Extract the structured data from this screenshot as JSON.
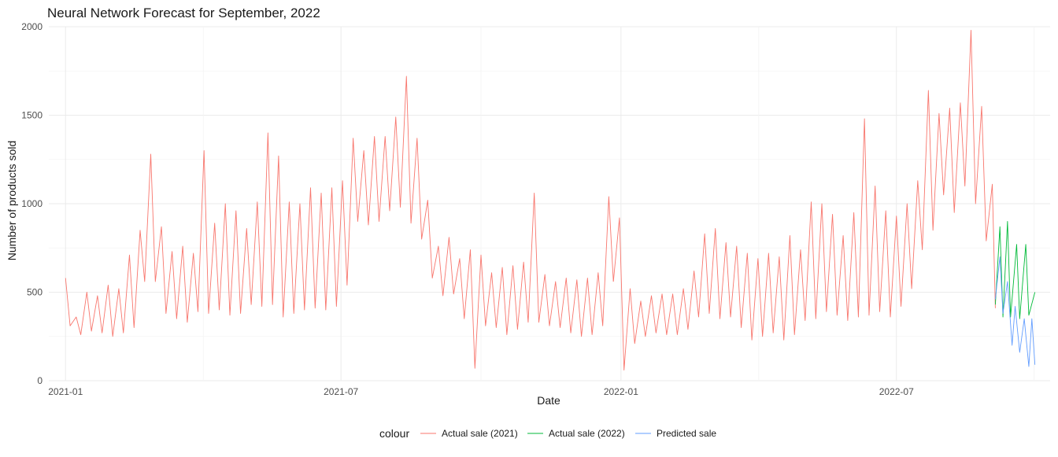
{
  "chart_data": {
    "type": "line",
    "title": "Neural Network Forecast for September, 2022",
    "xlabel": "Date",
    "ylabel": "Number of products sold",
    "x_axis_type": "date",
    "xlim": [
      "2020-12-21",
      "2022-10-10"
    ],
    "ylim": [
      0,
      2000
    ],
    "x_ticks": [
      {
        "date": "2021-01-01",
        "label": "2021-01"
      },
      {
        "date": "2021-07-01",
        "label": "2021-07"
      },
      {
        "date": "2022-01-01",
        "label": "2022-01"
      },
      {
        "date": "2022-07-01",
        "label": "2022-07"
      }
    ],
    "y_ticks": [
      0,
      500,
      1000,
      1500,
      2000
    ],
    "grid": true,
    "legend": {
      "title": "colour",
      "position": "bottom"
    },
    "series": [
      {
        "name": "Actual sale (2021)",
        "color": "#F8766D",
        "points": [
          [
            "2021-01-01",
            580
          ],
          [
            "2021-01-04",
            310
          ],
          [
            "2021-01-08",
            360
          ],
          [
            "2021-01-11",
            260
          ],
          [
            "2021-01-15",
            500
          ],
          [
            "2021-01-18",
            280
          ],
          [
            "2021-01-22",
            480
          ],
          [
            "2021-01-25",
            270
          ],
          [
            "2021-01-29",
            540
          ],
          [
            "2021-02-01",
            250
          ],
          [
            "2021-02-05",
            520
          ],
          [
            "2021-02-08",
            270
          ],
          [
            "2021-02-12",
            710
          ],
          [
            "2021-02-15",
            300
          ],
          [
            "2021-02-19",
            850
          ],
          [
            "2021-02-22",
            560
          ],
          [
            "2021-02-26",
            1280
          ],
          [
            "2021-03-01",
            560
          ],
          [
            "2021-03-05",
            870
          ],
          [
            "2021-03-08",
            380
          ],
          [
            "2021-03-12",
            730
          ],
          [
            "2021-03-15",
            350
          ],
          [
            "2021-03-19",
            760
          ],
          [
            "2021-03-22",
            330
          ],
          [
            "2021-03-26",
            720
          ],
          [
            "2021-03-29",
            390
          ],
          [
            "2021-04-02",
            1300
          ],
          [
            "2021-04-05",
            380
          ],
          [
            "2021-04-09",
            890
          ],
          [
            "2021-04-12",
            400
          ],
          [
            "2021-04-16",
            1000
          ],
          [
            "2021-04-19",
            370
          ],
          [
            "2021-04-23",
            960
          ],
          [
            "2021-04-26",
            380
          ],
          [
            "2021-04-30",
            860
          ],
          [
            "2021-05-03",
            430
          ],
          [
            "2021-05-07",
            1010
          ],
          [
            "2021-05-10",
            420
          ],
          [
            "2021-05-14",
            1400
          ],
          [
            "2021-05-17",
            430
          ],
          [
            "2021-05-21",
            1270
          ],
          [
            "2021-05-24",
            360
          ],
          [
            "2021-05-28",
            1010
          ],
          [
            "2021-05-31",
            380
          ],
          [
            "2021-06-04",
            1000
          ],
          [
            "2021-06-07",
            400
          ],
          [
            "2021-06-11",
            1090
          ],
          [
            "2021-06-14",
            410
          ],
          [
            "2021-06-18",
            1060
          ],
          [
            "2021-06-21",
            400
          ],
          [
            "2021-06-25",
            1090
          ],
          [
            "2021-06-28",
            420
          ],
          [
            "2021-07-02",
            1130
          ],
          [
            "2021-07-05",
            540
          ],
          [
            "2021-07-09",
            1370
          ],
          [
            "2021-07-12",
            900
          ],
          [
            "2021-07-16",
            1300
          ],
          [
            "2021-07-19",
            880
          ],
          [
            "2021-07-23",
            1380
          ],
          [
            "2021-07-26",
            900
          ],
          [
            "2021-07-30",
            1380
          ],
          [
            "2021-08-02",
            960
          ],
          [
            "2021-08-06",
            1490
          ],
          [
            "2021-08-09",
            980
          ],
          [
            "2021-08-13",
            1720
          ],
          [
            "2021-08-16",
            890
          ],
          [
            "2021-08-20",
            1370
          ],
          [
            "2021-08-23",
            800
          ],
          [
            "2021-08-27",
            1020
          ],
          [
            "2021-08-30",
            580
          ],
          [
            "2021-09-03",
            760
          ],
          [
            "2021-09-06",
            480
          ],
          [
            "2021-09-10",
            810
          ],
          [
            "2021-09-13",
            490
          ],
          [
            "2021-09-17",
            690
          ],
          [
            "2021-09-20",
            350
          ],
          [
            "2021-09-24",
            740
          ],
          [
            "2021-09-27",
            70
          ],
          [
            "2021-10-01",
            710
          ],
          [
            "2021-10-04",
            310
          ],
          [
            "2021-10-08",
            610
          ],
          [
            "2021-10-11",
            300
          ],
          [
            "2021-10-15",
            640
          ],
          [
            "2021-10-18",
            260
          ],
          [
            "2021-10-22",
            650
          ],
          [
            "2021-10-25",
            290
          ],
          [
            "2021-10-29",
            670
          ],
          [
            "2021-11-01",
            330
          ],
          [
            "2021-11-05",
            1060
          ],
          [
            "2021-11-08",
            330
          ],
          [
            "2021-11-12",
            600
          ],
          [
            "2021-11-15",
            310
          ],
          [
            "2021-11-19",
            560
          ],
          [
            "2021-11-22",
            300
          ],
          [
            "2021-11-26",
            580
          ],
          [
            "2021-11-29",
            270
          ],
          [
            "2021-12-03",
            570
          ],
          [
            "2021-12-06",
            250
          ],
          [
            "2021-12-10",
            580
          ],
          [
            "2021-12-13",
            260
          ],
          [
            "2021-12-17",
            610
          ],
          [
            "2021-12-20",
            310
          ],
          [
            "2021-12-24",
            1040
          ],
          [
            "2021-12-27",
            560
          ]
        ]
      },
      {
        "name": "",
        "color": "#F8766D",
        "points": [
          [
            "2021-12-27",
            560
          ],
          [
            "2021-12-31",
            920
          ],
          [
            "2022-01-03",
            60
          ],
          [
            "2022-01-07",
            520
          ],
          [
            "2022-01-10",
            210
          ],
          [
            "2022-01-14",
            450
          ],
          [
            "2022-01-17",
            250
          ],
          [
            "2022-01-21",
            480
          ],
          [
            "2022-01-24",
            270
          ],
          [
            "2022-01-28",
            490
          ],
          [
            "2022-01-31",
            260
          ],
          [
            "2022-02-04",
            490
          ],
          [
            "2022-02-07",
            260
          ],
          [
            "2022-02-11",
            520
          ],
          [
            "2022-02-14",
            290
          ],
          [
            "2022-02-18",
            620
          ],
          [
            "2022-02-21",
            360
          ],
          [
            "2022-02-25",
            830
          ],
          [
            "2022-02-28",
            380
          ],
          [
            "2022-03-04",
            860
          ],
          [
            "2022-03-07",
            350
          ],
          [
            "2022-03-11",
            780
          ],
          [
            "2022-03-14",
            360
          ],
          [
            "2022-03-18",
            760
          ],
          [
            "2022-03-21",
            300
          ],
          [
            "2022-03-25",
            720
          ],
          [
            "2022-03-28",
            230
          ],
          [
            "2022-04-01",
            690
          ],
          [
            "2022-04-04",
            250
          ],
          [
            "2022-04-08",
            720
          ],
          [
            "2022-04-11",
            270
          ],
          [
            "2022-04-15",
            700
          ],
          [
            "2022-04-18",
            230
          ],
          [
            "2022-04-22",
            820
          ],
          [
            "2022-04-25",
            260
          ],
          [
            "2022-04-29",
            740
          ],
          [
            "2022-05-02",
            340
          ],
          [
            "2022-05-06",
            1010
          ],
          [
            "2022-05-09",
            350
          ],
          [
            "2022-05-13",
            1000
          ],
          [
            "2022-05-16",
            390
          ],
          [
            "2022-05-20",
            940
          ],
          [
            "2022-05-23",
            370
          ],
          [
            "2022-05-27",
            820
          ],
          [
            "2022-05-30",
            340
          ],
          [
            "2022-06-03",
            950
          ],
          [
            "2022-06-06",
            360
          ],
          [
            "2022-06-10",
            1480
          ],
          [
            "2022-06-13",
            370
          ],
          [
            "2022-06-17",
            1100
          ],
          [
            "2022-06-20",
            390
          ],
          [
            "2022-06-24",
            960
          ],
          [
            "2022-06-27",
            360
          ],
          [
            "2022-07-01",
            930
          ],
          [
            "2022-07-04",
            420
          ],
          [
            "2022-07-08",
            1000
          ],
          [
            "2022-07-11",
            520
          ],
          [
            "2022-07-15",
            1130
          ],
          [
            "2022-07-18",
            740
          ],
          [
            "2022-07-22",
            1640
          ],
          [
            "2022-07-25",
            850
          ],
          [
            "2022-07-29",
            1510
          ],
          [
            "2022-08-01",
            1050
          ],
          [
            "2022-08-05",
            1540
          ],
          [
            "2022-08-08",
            950
          ],
          [
            "2022-08-12",
            1570
          ],
          [
            "2022-08-15",
            1100
          ],
          [
            "2022-08-19",
            1980
          ],
          [
            "2022-08-22",
            1000
          ],
          [
            "2022-08-26",
            1550
          ],
          [
            "2022-08-29",
            790
          ],
          [
            "2022-09-02",
            1110
          ],
          [
            "2022-09-04",
            410
          ]
        ]
      },
      {
        "name": "Actual sale (2022)",
        "color": "#00BA38",
        "points": [
          [
            "2022-09-04",
            430
          ],
          [
            "2022-09-07",
            870
          ],
          [
            "2022-09-09",
            360
          ],
          [
            "2022-09-12",
            900
          ],
          [
            "2022-09-14",
            360
          ],
          [
            "2022-09-18",
            770
          ],
          [
            "2022-09-20",
            350
          ],
          [
            "2022-09-24",
            770
          ],
          [
            "2022-09-26",
            370
          ],
          [
            "2022-09-30",
            500
          ]
        ]
      },
      {
        "name": "Predicted sale",
        "color": "#619CFF",
        "points": [
          [
            "2022-09-04",
            460
          ],
          [
            "2022-09-07",
            700
          ],
          [
            "2022-09-09",
            380
          ],
          [
            "2022-09-12",
            560
          ],
          [
            "2022-09-15",
            200
          ],
          [
            "2022-09-17",
            420
          ],
          [
            "2022-09-20",
            160
          ],
          [
            "2022-09-23",
            350
          ],
          [
            "2022-09-26",
            80
          ],
          [
            "2022-09-28",
            350
          ],
          [
            "2022-09-30",
            90
          ]
        ]
      }
    ]
  }
}
